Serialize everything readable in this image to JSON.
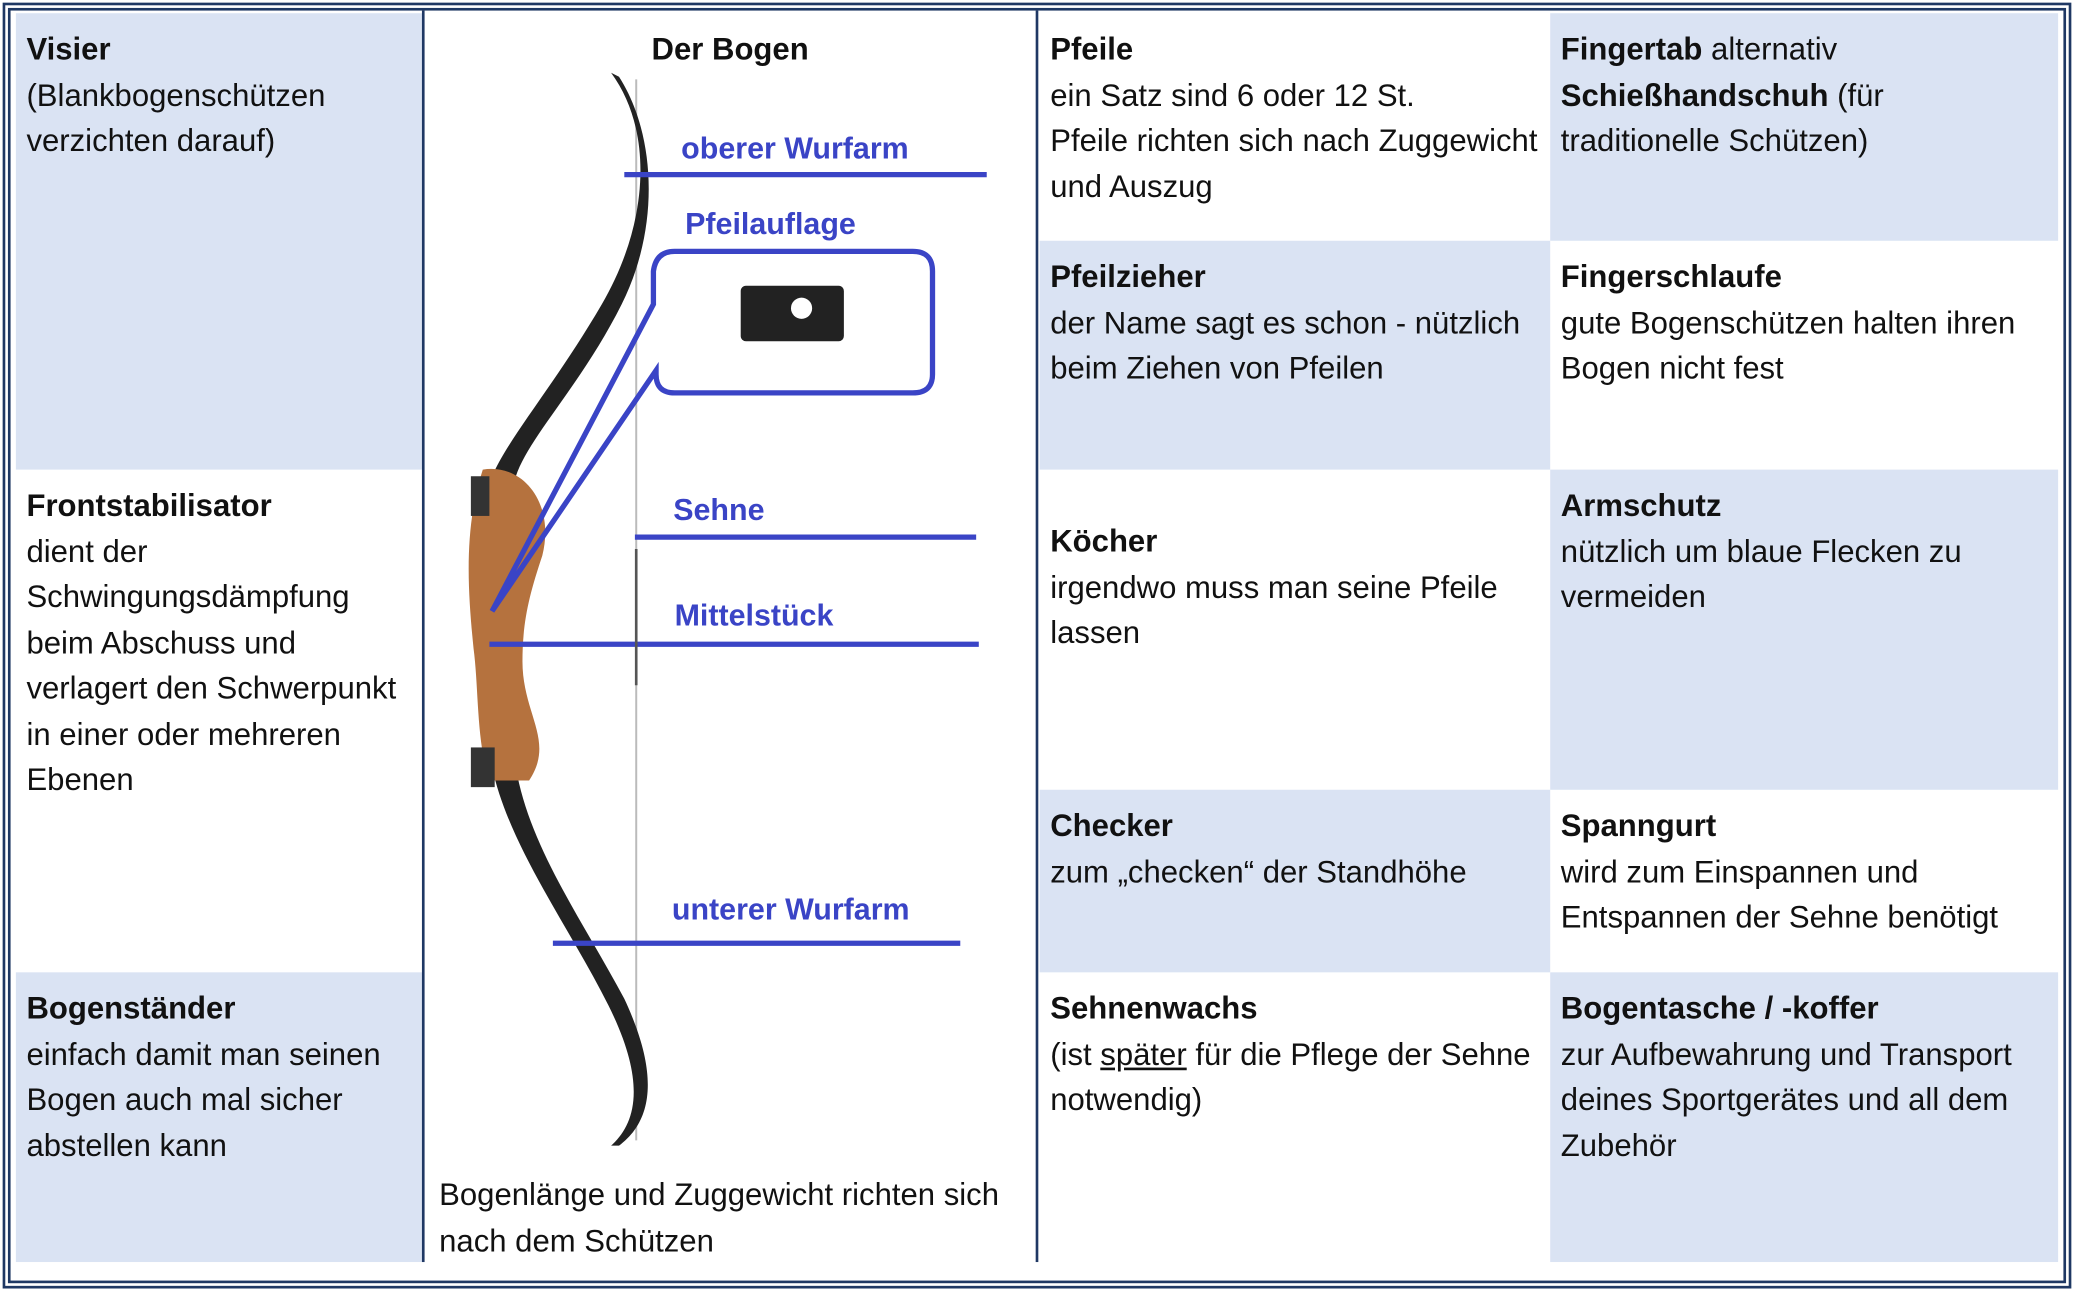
{
  "visier": {
    "title": "Visier",
    "text": "(Blankbogenschützen verzichten darauf)"
  },
  "frontstabilisator": {
    "title": "Frontstabilisator",
    "text": "dient der Schwingungsdämpfung beim Abschuss und verlagert den Schwerpunkt in einer oder mehreren Ebenen"
  },
  "bogenstaender": {
    "title": "Bogenständer",
    "text": "einfach damit man seinen Bogen auch mal sicher abstellen kann"
  },
  "bogen": {
    "title": "Der Bogen",
    "labels": [
      "oberer Wurfarm",
      "Pfeilauflage",
      "Sehne",
      "Mittelstück",
      "unterer Wurfarm"
    ],
    "caption": "Bogenlänge und Zuggewicht richten sich nach dem Schützen"
  },
  "pfeile": {
    "title": "Pfeile",
    "text": [
      "ein Satz sind 6 oder 12 St.",
      "Pfeile richten sich nach Zuggewicht und Auszug"
    ]
  },
  "pfeilzieher": {
    "title": "Pfeilzieher",
    "text": "der Name sagt es schon - nützlich beim Ziehen von Pfeilen"
  },
  "koecher": {
    "title": "Köcher",
    "text": "irgendwo muss man seine Pfeile lassen"
  },
  "checker": {
    "title": "Checker",
    "text": "zum „checken“ der Standhöhe"
  },
  "sehnenwachs": {
    "title": "Sehnenwachs",
    "text_before": "(ist",
    "text_underlined": "später",
    "text_after": "für die Pflege der Sehne notwendig)"
  },
  "fingertab": {
    "title": "Fingertab",
    "title_note": "alternativ",
    "subtitle": "Schießhandschuh",
    "subtitle_note": "(für traditionelle Schützen)"
  },
  "fingerschlaufe": {
    "title": "Fingerschlaufe",
    "text": "gute Bogenschützen halten ihren Bogen nicht fest"
  },
  "armschutz": {
    "title": "Armschutz",
    "text": "nützlich um blaue Flecken zu vermeiden"
  },
  "spanngurt": {
    "title": "Spanngurt",
    "text": "wird zum Einspannen und Entspannen der Sehne benötigt"
  },
  "bogentasche": {
    "title": "Bogentasche / -koffer",
    "text": "zur Aufbewahrung und Transport deines Sportgerätes und all dem Zubehör"
  }
}
